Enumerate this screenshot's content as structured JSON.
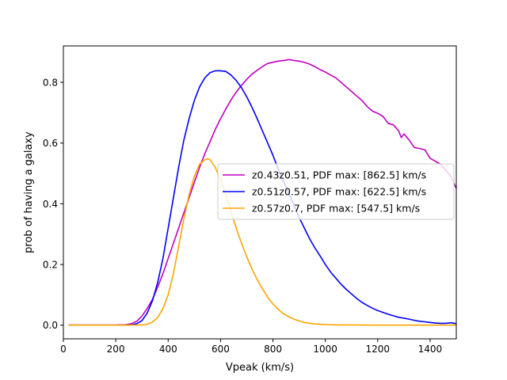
{
  "chart_data": {
    "type": "line",
    "title": "",
    "xlabel": "Vpeak (km/s)",
    "ylabel": "prob of having a galaxy",
    "xlim": [
      0,
      1500
    ],
    "ylim": [
      -0.045,
      0.92
    ],
    "xticks": [
      0,
      200,
      400,
      600,
      800,
      1000,
      1200,
      1400
    ],
    "xtick_labels": [
      "0",
      "200",
      "400",
      "600",
      "800",
      "1000",
      "1200",
      "1400"
    ],
    "yticks": [
      0.0,
      0.2,
      0.4,
      0.6,
      0.8
    ],
    "ytick_labels": [
      "0.0",
      "0.2",
      "0.4",
      "0.6",
      "0.8"
    ],
    "grid": false,
    "legend_position": "center-right",
    "series": [
      {
        "name": "z0.43z0.51, PDF max: [862.5] km/s",
        "color": "#bf00bf",
        "x": [
          20,
          100,
          200,
          240,
          260,
          280,
          300,
          320,
          340,
          360,
          380,
          400,
          420,
          440,
          460,
          480,
          500,
          520,
          540,
          560,
          580,
          600,
          620,
          640,
          660,
          680,
          700,
          720,
          740,
          760,
          780,
          800,
          820,
          840,
          860,
          870,
          880,
          900,
          920,
          940,
          960,
          980,
          1000,
          1020,
          1040,
          1060,
          1080,
          1100,
          1120,
          1140,
          1160,
          1180,
          1200,
          1220,
          1240,
          1260,
          1280,
          1290,
          1300,
          1310,
          1320,
          1340,
          1360,
          1380,
          1400,
          1420,
          1440,
          1460,
          1480,
          1500
        ],
        "y": [
          0.0,
          0.0,
          0.0,
          0.002,
          0.005,
          0.013,
          0.03,
          0.055,
          0.085,
          0.125,
          0.17,
          0.22,
          0.27,
          0.32,
          0.37,
          0.42,
          0.47,
          0.52,
          0.565,
          0.605,
          0.645,
          0.68,
          0.712,
          0.742,
          0.768,
          0.79,
          0.81,
          0.827,
          0.84,
          0.852,
          0.862,
          0.866,
          0.87,
          0.872,
          0.875,
          0.874,
          0.872,
          0.87,
          0.866,
          0.86,
          0.852,
          0.842,
          0.834,
          0.824,
          0.815,
          0.8,
          0.785,
          0.77,
          0.755,
          0.74,
          0.72,
          0.705,
          0.698,
          0.688,
          0.665,
          0.66,
          0.64,
          0.618,
          0.63,
          0.62,
          0.61,
          0.585,
          0.582,
          0.578,
          0.55,
          0.54,
          0.53,
          0.51,
          0.49,
          0.45
        ]
      },
      {
        "name": "z0.51z0.57, PDF max: [622.5] km/s",
        "color": "#0000ff",
        "x": [
          20,
          100,
          200,
          260,
          280,
          300,
          320,
          340,
          360,
          380,
          400,
          420,
          440,
          460,
          480,
          500,
          520,
          540,
          560,
          580,
          600,
          620,
          640,
          660,
          680,
          700,
          720,
          740,
          760,
          780,
          800,
          820,
          840,
          860,
          880,
          900,
          920,
          940,
          960,
          980,
          1000,
          1020,
          1040,
          1060,
          1080,
          1100,
          1120,
          1140,
          1160,
          1180,
          1200,
          1220,
          1240,
          1260,
          1280,
          1300,
          1320,
          1340,
          1360,
          1380,
          1400,
          1420,
          1440,
          1460,
          1480,
          1500
        ],
        "y": [
          0.0,
          0.0,
          0.0,
          0.001,
          0.005,
          0.015,
          0.04,
          0.08,
          0.14,
          0.22,
          0.32,
          0.42,
          0.52,
          0.61,
          0.68,
          0.74,
          0.785,
          0.815,
          0.832,
          0.838,
          0.838,
          0.836,
          0.824,
          0.806,
          0.782,
          0.752,
          0.718,
          0.68,
          0.64,
          0.6,
          0.56,
          0.515,
          0.475,
          0.435,
          0.395,
          0.355,
          0.32,
          0.285,
          0.255,
          0.228,
          0.2,
          0.175,
          0.155,
          0.135,
          0.118,
          0.103,
          0.088,
          0.075,
          0.065,
          0.056,
          0.048,
          0.042,
          0.036,
          0.031,
          0.026,
          0.023,
          0.02,
          0.016,
          0.013,
          0.011,
          0.009,
          0.007,
          0.006,
          0.006,
          0.008,
          0.005
        ]
      },
      {
        "name": "z0.57z0.7, PDF max: [547.5] km/s",
        "color": "#ffa500",
        "x": [
          20,
          100,
          200,
          300,
          320,
          340,
          360,
          380,
          400,
          420,
          440,
          460,
          480,
          500,
          520,
          540,
          550,
          560,
          580,
          600,
          620,
          640,
          660,
          680,
          700,
          720,
          740,
          760,
          780,
          800,
          820,
          840,
          860,
          880,
          900,
          920,
          940,
          960,
          980,
          1000,
          1050,
          1100,
          1200,
          1300,
          1400,
          1500
        ],
        "y": [
          0.0,
          0.0,
          0.0,
          0.001,
          0.003,
          0.01,
          0.025,
          0.055,
          0.1,
          0.17,
          0.26,
          0.35,
          0.43,
          0.49,
          0.53,
          0.545,
          0.548,
          0.545,
          0.52,
          0.48,
          0.43,
          0.375,
          0.32,
          0.27,
          0.225,
          0.185,
          0.15,
          0.12,
          0.092,
          0.07,
          0.052,
          0.038,
          0.028,
          0.02,
          0.014,
          0.009,
          0.006,
          0.004,
          0.003,
          0.002,
          0.001,
          0.001,
          0.0,
          0.0,
          0.0,
          0.0
        ]
      }
    ]
  }
}
